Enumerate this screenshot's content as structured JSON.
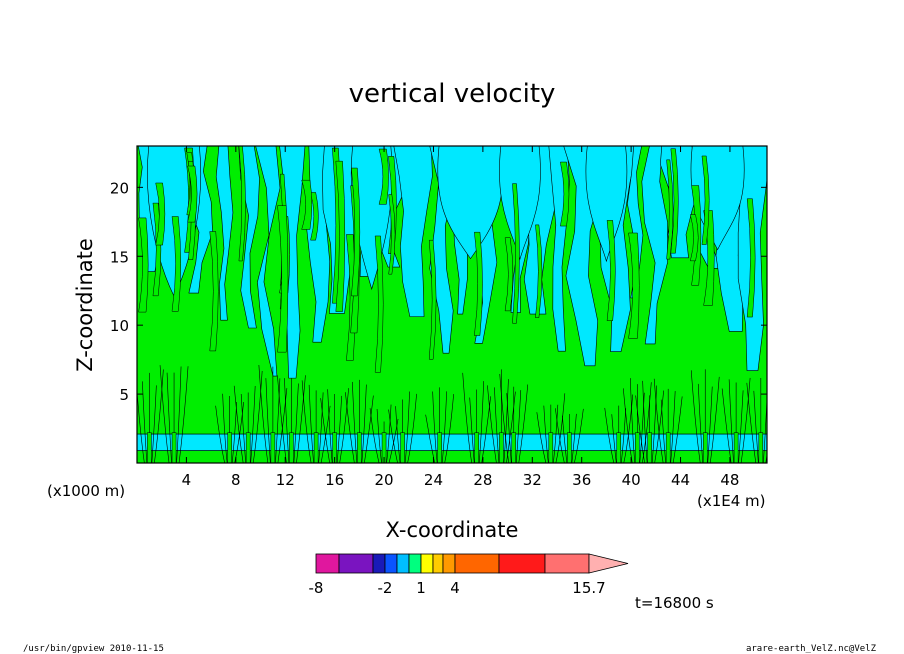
{
  "chart_data": {
    "type": "heatmap",
    "title": "vertical velocity",
    "xlabel": "X-coordinate",
    "ylabel": "Z-coordinate",
    "x_unit": "(x1E4 m)",
    "y_unit": "(x1000 m)",
    "xlim": [
      0,
      51
    ],
    "ylim": [
      0,
      23
    ],
    "x_ticks": [
      4,
      8,
      12,
      16,
      20,
      24,
      28,
      32,
      36,
      40,
      44,
      48
    ],
    "y_ticks": [
      5,
      10,
      15,
      20
    ],
    "time_label": "t=16800 s",
    "colorbar": {
      "colors": [
        "#e0179e",
        "#7a14c0",
        "#1a1ab8",
        "#0a55ff",
        "#00bfff",
        "#00ff7f",
        "#ffff00",
        "#ffcc00",
        "#ff9900",
        "#ff6600",
        "#ff1a1a",
        "#ff7070",
        "#ffb0b0"
      ],
      "tick_labels": [
        "-8",
        "-2",
        "1",
        "4",
        "15.7"
      ],
      "tick_values": [
        -8,
        -2,
        1,
        4,
        15.7
      ]
    },
    "dominant_fills": {
      "negative": "#00e8ff",
      "positive": "#00ee00"
    },
    "plumes_x": [
      1,
      3,
      7.5,
      9,
      11,
      12.5,
      14.5,
      16,
      18,
      20,
      21.5,
      24.5,
      27.5,
      29.5,
      30.5,
      33.5,
      35,
      39,
      40.5,
      41.5,
      43,
      46,
      48.5,
      50.5
    ]
  },
  "footer": {
    "left": "/usr/bin/gpview   2010-11-15",
    "right": "arare-earth_VelZ.nc@VelZ"
  }
}
